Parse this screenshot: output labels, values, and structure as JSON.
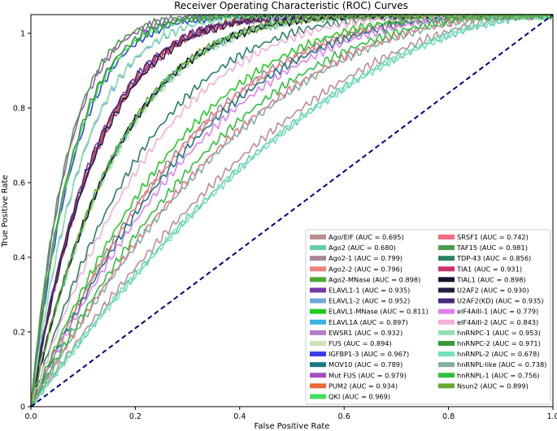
{
  "chart_data": {
    "type": "line",
    "title": "Receiver Operating Characteristic (ROC) Curves",
    "xlabel": "False Positive Rate",
    "ylabel": "True Positive Rate",
    "xlim": [
      0.0,
      1.0
    ],
    "ylim": [
      0.0,
      1.05
    ],
    "xticks": [
      0.0,
      0.2,
      0.4,
      0.6,
      0.8,
      1.0
    ],
    "xtick_labels": [
      "0.0",
      "0.2",
      "0.4",
      "0.6",
      "0.8",
      "1.0"
    ],
    "yticks": [
      0,
      0.2,
      0.4,
      0.6,
      0.8,
      1
    ],
    "ytick_labels": [
      "0",
      "0.2",
      "0.4",
      "0.6",
      "0.8",
      "1"
    ],
    "grid": false,
    "legend_position": "lower-right",
    "diagonal": {
      "color": "#000080",
      "style": "dashed",
      "from": [
        0,
        0
      ],
      "to": [
        1,
        1.05
      ]
    },
    "series": [
      {
        "name": "Ago/EIF",
        "label": "Ago/EIF (AUC = 0.695)",
        "auc": 0.695,
        "color": "#bc8f8f"
      },
      {
        "name": "Ago2",
        "label": "Ago2 (AUC = 0.680)",
        "auc": 0.68,
        "color": "#66cdaa"
      },
      {
        "name": "Ago2-1",
        "label": "Ago2-1 (AUC = 0.799)",
        "auc": 0.799,
        "color": "#a9849a"
      },
      {
        "name": "Ago2-2",
        "label": "Ago2-2 (AUC = 0.796)",
        "auc": 0.796,
        "color": "#f08080"
      },
      {
        "name": "Ago2-MNase",
        "label": "Ago2-MNase (AUC = 0.898)",
        "auc": 0.898,
        "color": "#4aa832"
      },
      {
        "name": "ELAVL1-1",
        "label": "ELAVL1-1 (AUC = 0.935)",
        "auc": 0.935,
        "color": "#7b3aa8"
      },
      {
        "name": "ELAVL1-2",
        "label": "ELAVL1-2 (AUC = 0.952)",
        "auc": 0.952,
        "color": "#6fa8dc"
      },
      {
        "name": "ELAVL1-MNase",
        "label": "ELAVL1-MNase (AUC = 0.811)",
        "auc": 0.811,
        "color": "#22cc22"
      },
      {
        "name": "ELAVL1A",
        "label": "ELAVL1A (AUC = 0.897)",
        "auc": 0.897,
        "color": "#38b4e0"
      },
      {
        "name": "EWSR1",
        "label": "EWSR1 (AUC = 0.932)",
        "auc": 0.932,
        "color": "#b57cc4"
      },
      {
        "name": "FUS",
        "label": "FUS (AUC = 0.894)",
        "auc": 0.894,
        "color": "#c9e6b8"
      },
      {
        "name": "IGFBP1-3",
        "label": "IGFBP1-3 (AUC = 0.967)",
        "auc": 0.967,
        "color": "#3a3af0"
      },
      {
        "name": "MOV10",
        "label": "MOV10 (AUC = 0.789)",
        "auc": 0.789,
        "color": "#1a7a80"
      },
      {
        "name": "Mut FUS",
        "label": "Mut FUS (AUC = 0.979)",
        "auc": 0.979,
        "color": "#a64ec0"
      },
      {
        "name": "PUM2",
        "label": "PUM2 (AUC = 0.934)",
        "auc": 0.934,
        "color": "#ea6a3a"
      },
      {
        "name": "QKI",
        "label": "QKI (AUC = 0.969)",
        "auc": 0.969,
        "color": "#44e060"
      },
      {
        "name": "SRSF1",
        "label": "SRSF1 (AUC = 0.742)",
        "auc": 0.742,
        "color": "#f07080"
      },
      {
        "name": "TAF15",
        "label": "TAF15 (AUC = 0.981)",
        "auc": 0.981,
        "color": "#4a9e4a"
      },
      {
        "name": "TDP-43",
        "label": "TDP-43 (AUC = 0.856)",
        "auc": 0.856,
        "color": "#2a8060"
      },
      {
        "name": "TIA1",
        "label": "TIA1 (AUC = 0.931)",
        "auc": 0.931,
        "color": "#c8336a"
      },
      {
        "name": "TIAL1",
        "label": "TIAL1 (AUC = 0.898)",
        "auc": 0.898,
        "color": "#141430"
      },
      {
        "name": "U2AF2",
        "label": "U2AF2 (AUC = 0.930)",
        "auc": 0.93,
        "color": "#202040"
      },
      {
        "name": "U2AF2(KD)",
        "label": "U2AF2(KD) (AUC = 0.935)",
        "auc": 0.935,
        "color": "#4a2a7a"
      },
      {
        "name": "eIF4AIII-1",
        "label": "eIF4AIII-1 (AUC = 0.779)",
        "auc": 0.779,
        "color": "#e080f0"
      },
      {
        "name": "eIF4AIII-2",
        "label": "eIF4AIII-2 (AUC = 0.843)",
        "auc": 0.843,
        "color": "#f0b0d8"
      },
      {
        "name": "hnRNPC-1",
        "label": "hnRNPC-1 (AUC = 0.953)",
        "auc": 0.953,
        "color": "#90e0b0"
      },
      {
        "name": "hnRNPC-2",
        "label": "hnRNPC-2 (AUC = 0.971)",
        "auc": 0.971,
        "color": "#3a9a3a"
      },
      {
        "name": "hnRNPL-2",
        "label": "hnRNPL-2 (AUC = 0.678)",
        "auc": 0.678,
        "color": "#70e0c0"
      },
      {
        "name": "hnRNPL-like",
        "label": "hnRNPL-like (AUC = 0.738)",
        "auc": 0.738,
        "color": "#80b0a0"
      },
      {
        "name": "hnRNPL-1",
        "label": "hnRNPL-1 (AUC = 0.756)",
        "auc": 0.756,
        "color": "#30c040"
      },
      {
        "name": "Nsun2",
        "label": "Nsun2 (AUC = 0.899)",
        "auc": 0.899,
        "color": "#6aa830"
      }
    ]
  }
}
